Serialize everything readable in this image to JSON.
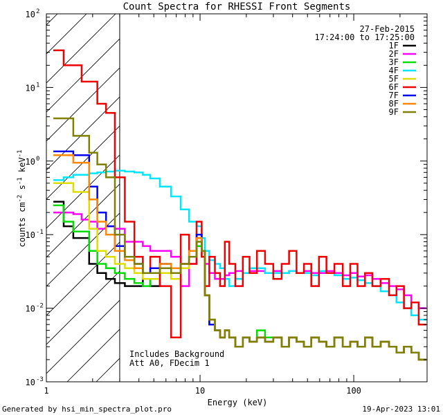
{
  "chart_data": {
    "type": "line",
    "title": "Count Spectra for RHESSI Front Segments",
    "xlabel": "Energy (keV)",
    "ylabel": "counts cm-2 s-1 keV-1",
    "xscale": "log",
    "yscale": "log",
    "xlim": [
      1,
      300
    ],
    "ylim": [
      0.001,
      100
    ],
    "x_ticks": [
      {
        "value": 1,
        "label": "1"
      },
      {
        "value": 10,
        "label": "10"
      },
      {
        "value": 100,
        "label": "100"
      }
    ],
    "y_ticks": [
      {
        "value": 0.001,
        "base": "10",
        "exp": "-3"
      },
      {
        "value": 0.01,
        "base": "10",
        "exp": "-2"
      },
      {
        "value": 0.1,
        "base": "10",
        "exp": "-1"
      },
      {
        "value": 1,
        "base": "10",
        "exp": "0"
      },
      {
        "value": 10,
        "base": "10",
        "exp": "1"
      },
      {
        "value": 100,
        "base": "10",
        "exp": "2"
      }
    ],
    "hatched_region_max_keV": 3,
    "date": "27-Feb-2015",
    "time_range": "17:24:00 to 17:25:00",
    "annotations": [
      "Includes Background",
      "Att A0, FDecim 1"
    ],
    "footer_left": "Generated by hsi_min_spectra_plot.pro",
    "footer_right": "19-Apr-2023 13:01",
    "series": [
      {
        "name": "1F",
        "color": "#000000",
        "x": [
          1.2,
          1.4,
          1.6,
          1.8,
          2.0,
          2.3,
          2.6,
          3.0,
          3.5,
          4.0,
          4.5,
          5.0,
          6.0,
          7.0,
          8.0,
          9.0,
          10.0,
          10.5,
          11.0,
          12.0,
          13.0,
          14.0,
          15.0,
          16.0,
          18.0,
          20.0,
          22.0,
          25.0,
          28.0,
          32.0,
          36.0,
          40.0,
          45.0,
          50.0,
          56.0,
          63.0,
          70.0,
          80.0,
          90.0,
          100.0,
          112.0,
          125.0,
          140.0,
          160.0,
          180.0,
          200.0,
          225.0,
          250.0,
          280.0
        ],
        "y": [
          0.28,
          0.13,
          0.09,
          0.09,
          0.04,
          0.03,
          0.025,
          0.022,
          0.02,
          0.02,
          0.025,
          0.02,
          0.03,
          0.03,
          0.035,
          0.05,
          0.09,
          0.06,
          0.015,
          0.006,
          0.005,
          0.004,
          0.005,
          0.004,
          0.003,
          0.004,
          0.0035,
          0.004,
          0.0035,
          0.004,
          0.003,
          0.004,
          0.0035,
          0.003,
          0.004,
          0.0035,
          0.003,
          0.004,
          0.003,
          0.0035,
          0.003,
          0.004,
          0.003,
          0.0035,
          0.003,
          0.0025,
          0.003,
          0.0025,
          0.002
        ]
      },
      {
        "name": "2F",
        "color": "#ff00ff",
        "x": [
          1.2,
          1.4,
          1.6,
          1.8,
          2.0,
          2.3,
          2.6,
          3.0,
          3.5,
          4.0,
          4.5,
          5.0,
          6.0,
          7.0,
          8.0,
          9.0,
          10.0,
          10.5,
          11.0,
          12.0,
          13.0,
          14.0,
          15.0,
          16.0,
          18.0,
          20.0,
          22.0,
          25.0,
          28.0,
          32.0,
          36.0,
          40.0,
          45.0,
          50.0,
          56.0,
          63.0,
          70.0,
          80.0,
          90.0,
          100.0,
          112.0,
          125.0,
          140.0,
          160.0,
          180.0,
          200.0,
          225.0,
          250.0,
          280.0
        ],
        "y": [
          0.2,
          0.2,
          0.19,
          0.16,
          0.15,
          0.12,
          0.13,
          0.12,
          0.08,
          0.08,
          0.07,
          0.06,
          0.06,
          0.05,
          0.02,
          0.04,
          0.1,
          0.06,
          0.04,
          0.03,
          0.025,
          0.025,
          0.028,
          0.03,
          0.032,
          0.03,
          0.032,
          0.032,
          0.03,
          0.032,
          0.03,
          0.032,
          0.03,
          0.032,
          0.03,
          0.03,
          0.032,
          0.03,
          0.028,
          0.03,
          0.027,
          0.028,
          0.025,
          0.022,
          0.02,
          0.018,
          0.015,
          0.012,
          0.01
        ]
      },
      {
        "name": "3F",
        "color": "#00dd00",
        "x": [
          1.2,
          1.4,
          1.6,
          1.8,
          2.0,
          2.3,
          2.6,
          3.0,
          3.5,
          4.0,
          4.5,
          5.0,
          6.0,
          7.0,
          8.0,
          9.0,
          10.0,
          10.5,
          11.0,
          12.0,
          13.0,
          14.0,
          15.0,
          16.0,
          18.0,
          20.0,
          22.0,
          25.0,
          28.0,
          32.0,
          36.0,
          40.0,
          45.0,
          50.0,
          56.0,
          63.0,
          70.0,
          80.0,
          90.0,
          100.0,
          112.0,
          125.0,
          140.0,
          160.0,
          180.0,
          200.0,
          225.0,
          250.0,
          280.0
        ],
        "y": [
          0.25,
          0.15,
          0.11,
          0.11,
          0.06,
          0.04,
          0.035,
          0.03,
          0.025,
          0.022,
          0.02,
          0.025,
          0.035,
          0.03,
          0.035,
          0.05,
          0.07,
          0.05,
          0.015,
          0.007,
          0.005,
          0.004,
          0.005,
          0.004,
          0.003,
          0.004,
          0.0035,
          0.005,
          0.004,
          0.004,
          0.003,
          0.004,
          0.0035,
          0.003,
          0.004,
          0.0035,
          0.003,
          0.004,
          0.003,
          0.0035,
          0.003,
          0.004,
          0.003,
          0.0035,
          0.003,
          0.0025,
          0.003,
          0.0025,
          0.002
        ]
      },
      {
        "name": "4F",
        "color": "#00e5ff",
        "x": [
          1.2,
          1.4,
          1.6,
          1.8,
          2.0,
          2.3,
          2.6,
          3.0,
          3.5,
          4.0,
          4.5,
          5.0,
          6.0,
          7.0,
          8.0,
          9.0,
          10.0,
          10.5,
          11.0,
          12.0,
          13.0,
          14.0,
          15.0,
          16.0,
          18.0,
          20.0,
          22.0,
          25.0,
          28.0,
          32.0,
          36.0,
          40.0,
          45.0,
          50.0,
          56.0,
          63.0,
          70.0,
          80.0,
          90.0,
          100.0,
          112.0,
          125.0,
          140.0,
          160.0,
          180.0,
          200.0,
          225.0,
          250.0,
          280.0
        ],
        "y": [
          0.55,
          0.6,
          0.65,
          0.65,
          0.68,
          0.7,
          0.72,
          0.74,
          0.72,
          0.7,
          0.65,
          0.58,
          0.45,
          0.33,
          0.22,
          0.15,
          0.13,
          0.09,
          0.06,
          0.045,
          0.04,
          0.035,
          0.025,
          0.02,
          0.025,
          0.03,
          0.035,
          0.035,
          0.03,
          0.03,
          0.03,
          0.032,
          0.03,
          0.03,
          0.028,
          0.032,
          0.03,
          0.028,
          0.025,
          0.026,
          0.024,
          0.022,
          0.02,
          0.017,
          0.015,
          0.012,
          0.01,
          0.008,
          0.007
        ]
      },
      {
        "name": "5F",
        "color": "#dddd00",
        "x": [
          1.2,
          1.4,
          1.6,
          1.8,
          2.0,
          2.3,
          2.6,
          3.0,
          3.5,
          4.0,
          4.5,
          5.0,
          6.0,
          7.0,
          8.0,
          9.0,
          10.0,
          10.5,
          11.0,
          12.0,
          13.0,
          14.0,
          15.0,
          16.0,
          18.0,
          20.0,
          22.0,
          25.0,
          28.0,
          32.0,
          36.0,
          40.0,
          45.0,
          50.0,
          56.0,
          63.0,
          70.0,
          80.0,
          90.0,
          100.0,
          112.0,
          125.0,
          140.0,
          160.0,
          180.0,
          200.0,
          225.0,
          250.0,
          280.0
        ],
        "y": [
          0.5,
          0.5,
          0.38,
          0.38,
          0.12,
          0.06,
          0.05,
          0.04,
          0.035,
          0.03,
          0.025,
          0.025,
          0.03,
          0.025,
          0.035,
          0.05,
          0.08,
          0.06,
          0.015,
          0.007,
          0.005,
          0.004,
          0.005,
          0.004,
          0.003,
          0.004,
          0.0035,
          0.004,
          0.0035,
          0.004,
          0.003,
          0.004,
          0.0035,
          0.003,
          0.004,
          0.0035,
          0.003,
          0.004,
          0.003,
          0.0035,
          0.003,
          0.004,
          0.003,
          0.0035,
          0.003,
          0.0025,
          0.003,
          0.0025,
          0.002
        ]
      },
      {
        "name": "6F",
        "color": "#ee0000",
        "x": [
          1.2,
          1.4,
          1.6,
          1.8,
          2.0,
          2.3,
          2.6,
          3.0,
          3.5,
          4.0,
          4.5,
          5.0,
          6.0,
          7.0,
          8.0,
          9.0,
          10.0,
          10.5,
          11.0,
          12.0,
          13.0,
          14.0,
          15.0,
          16.0,
          18.0,
          20.0,
          22.0,
          25.0,
          28.0,
          32.0,
          36.0,
          40.0,
          45.0,
          50.0,
          56.0,
          63.0,
          70.0,
          80.0,
          90.0,
          100.0,
          112.0,
          125.0,
          140.0,
          160.0,
          180.0,
          200.0,
          225.0,
          250.0,
          280.0
        ],
        "y": [
          32,
          20,
          20,
          12,
          12,
          6,
          4.5,
          0.6,
          0.15,
          0.05,
          0.03,
          0.05,
          0.02,
          0.004,
          0.1,
          0.04,
          0.15,
          0.05,
          0.02,
          0.05,
          0.03,
          0.02,
          0.08,
          0.04,
          0.02,
          0.05,
          0.03,
          0.06,
          0.04,
          0.025,
          0.04,
          0.06,
          0.03,
          0.04,
          0.02,
          0.05,
          0.03,
          0.04,
          0.02,
          0.04,
          0.02,
          0.03,
          0.02,
          0.025,
          0.015,
          0.02,
          0.01,
          0.012,
          0.006
        ]
      },
      {
        "name": "7F",
        "color": "#0000ee",
        "x": [
          1.2,
          1.4,
          1.6,
          1.8,
          2.0,
          2.3,
          2.6,
          3.0,
          3.5,
          4.0,
          4.5,
          5.0,
          6.0,
          7.0,
          8.0,
          9.0,
          10.0,
          10.5,
          11.0,
          12.0,
          13.0,
          14.0,
          15.0,
          16.0,
          18.0,
          20.0,
          22.0,
          25.0,
          28.0,
          32.0,
          36.0,
          40.0,
          45.0,
          50.0,
          56.0,
          63.0,
          70.0,
          80.0,
          90.0,
          100.0,
          112.0,
          125.0,
          140.0,
          160.0,
          180.0,
          200.0,
          225.0,
          250.0,
          280.0
        ],
        "y": [
          1.35,
          1.35,
          1.2,
          1.2,
          0.45,
          0.2,
          0.13,
          0.07,
          0.05,
          0.04,
          0.03,
          0.035,
          0.04,
          0.035,
          0.04,
          0.06,
          0.1,
          0.06,
          0.015,
          0.006,
          0.005,
          0.004,
          0.005,
          0.004,
          0.003,
          0.004,
          0.0035,
          0.004,
          0.0035,
          0.004,
          0.003,
          0.004,
          0.0035,
          0.003,
          0.004,
          0.0035,
          0.003,
          0.004,
          0.003,
          0.0035,
          0.003,
          0.004,
          0.003,
          0.0035,
          0.003,
          0.0025,
          0.003,
          0.0025,
          0.002
        ]
      },
      {
        "name": "8F",
        "color": "#ff8800",
        "x": [
          1.2,
          1.4,
          1.6,
          1.8,
          2.0,
          2.3,
          2.6,
          3.0,
          3.5,
          4.0,
          4.5,
          5.0,
          6.0,
          7.0,
          8.0,
          9.0,
          10.0,
          10.5,
          11.0,
          12.0,
          13.0,
          14.0,
          15.0,
          16.0,
          18.0,
          20.0,
          22.0,
          25.0,
          28.0,
          32.0,
          36.0,
          40.0,
          45.0,
          50.0,
          56.0,
          63.0,
          70.0,
          80.0,
          90.0,
          100.0,
          112.0,
          125.0,
          140.0,
          160.0,
          180.0,
          200.0,
          225.0,
          250.0,
          280.0
        ],
        "y": [
          1.2,
          1.2,
          0.95,
          0.95,
          0.3,
          0.15,
          0.1,
          0.06,
          0.045,
          0.035,
          0.03,
          0.03,
          0.04,
          0.035,
          0.04,
          0.06,
          0.09,
          0.06,
          0.015,
          0.007,
          0.005,
          0.004,
          0.005,
          0.004,
          0.003,
          0.004,
          0.0035,
          0.004,
          0.0035,
          0.004,
          0.003,
          0.004,
          0.0035,
          0.003,
          0.004,
          0.0035,
          0.003,
          0.004,
          0.003,
          0.0035,
          0.003,
          0.004,
          0.003,
          0.0035,
          0.003,
          0.0025,
          0.003,
          0.0025,
          0.002
        ]
      },
      {
        "name": "9F",
        "color": "#808000",
        "x": [
          1.2,
          1.4,
          1.6,
          1.8,
          2.0,
          2.3,
          2.6,
          3.0,
          3.5,
          4.0,
          4.5,
          5.0,
          6.0,
          7.0,
          8.0,
          9.0,
          10.0,
          10.5,
          11.0,
          12.0,
          13.0,
          14.0,
          15.0,
          16.0,
          18.0,
          20.0,
          22.0,
          25.0,
          28.0,
          32.0,
          36.0,
          40.0,
          45.0,
          50.0,
          56.0,
          63.0,
          70.0,
          80.0,
          90.0,
          100.0,
          112.0,
          125.0,
          140.0,
          160.0,
          180.0,
          200.0,
          225.0,
          250.0,
          280.0
        ],
        "y": [
          3.8,
          3.8,
          2.2,
          2.2,
          1.3,
          0.9,
          0.6,
          0.1,
          0.05,
          0.04,
          0.03,
          0.03,
          0.035,
          0.03,
          0.04,
          0.05,
          0.08,
          0.06,
          0.015,
          0.007,
          0.005,
          0.004,
          0.005,
          0.004,
          0.003,
          0.004,
          0.0035,
          0.004,
          0.0035,
          0.004,
          0.003,
          0.004,
          0.0035,
          0.003,
          0.004,
          0.0035,
          0.003,
          0.004,
          0.003,
          0.0035,
          0.003,
          0.004,
          0.003,
          0.0035,
          0.003,
          0.0025,
          0.003,
          0.0025,
          0.002
        ]
      }
    ]
  }
}
